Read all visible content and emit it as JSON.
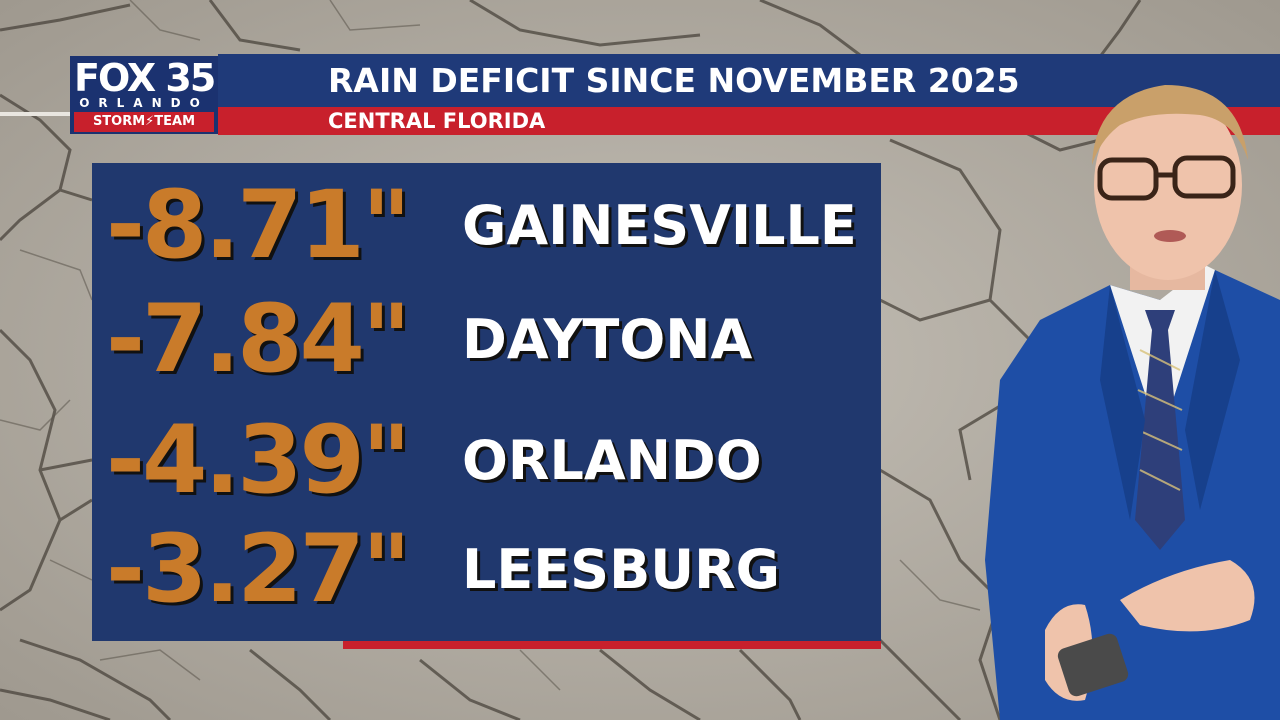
{
  "logo": {
    "brand": "FOX 35",
    "city": "ORLANDO",
    "team": "STORM⚡TEAM"
  },
  "header": {
    "title": "RAIN DEFICIT SINCE NOVEMBER 2025",
    "subtitle": "CENTRAL FLORIDA"
  },
  "deficits": [
    {
      "value": "-8.71\"",
      "city": "GAINESVILLE"
    },
    {
      "value": "-7.84\"",
      "city": "DAYTONA"
    },
    {
      "value": "-4.39\"",
      "city": "ORLANDO"
    },
    {
      "value": "-3.27\"",
      "city": "LEESBURG"
    }
  ],
  "colors": {
    "header_blue": "#1f3a79",
    "header_red": "#c8202c",
    "panel_blue": "#20386e",
    "value_orange": "#c97b2a",
    "background_mud": "#b7b1a8"
  }
}
